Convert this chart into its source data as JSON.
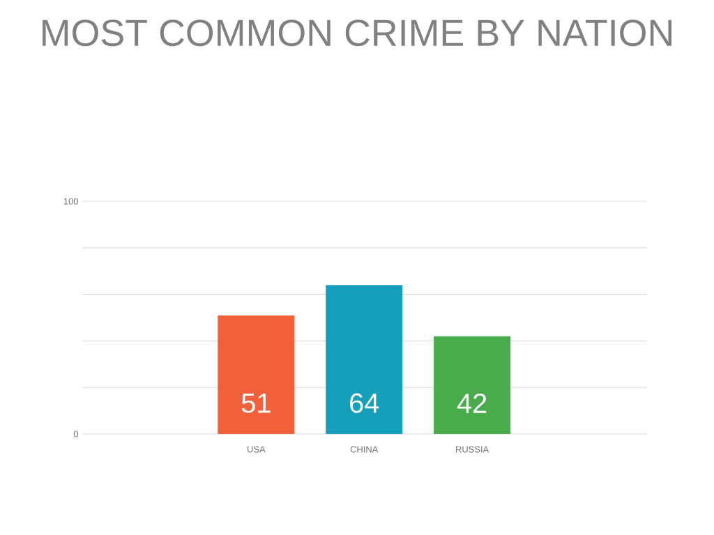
{
  "chart_data": {
    "type": "bar",
    "title": "MOST COMMON CRIME BY NATION",
    "categories": [
      "USA",
      "CHINA",
      "RUSSIA"
    ],
    "values": [
      51,
      64,
      42
    ],
    "colors": [
      "#f0603a",
      "#159fba",
      "#4aab4c"
    ],
    "ylim": [
      0,
      100
    ],
    "yticks": [
      0,
      {
        "value": 20,
        "label": null
      },
      {
        "value": 40,
        "label": null
      },
      {
        "value": 60,
        "label": null
      },
      {
        "value": 80,
        "label": null
      },
      100
    ],
    "grid": "y",
    "data_labels": true
  }
}
